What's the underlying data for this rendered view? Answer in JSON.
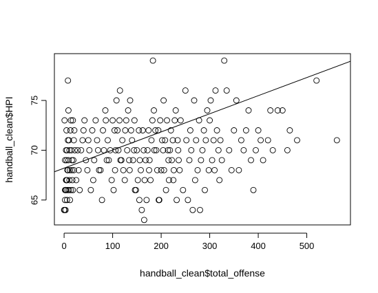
{
  "chart_data": {
    "type": "scatter",
    "xlabel": "handball_clean$total_offense",
    "ylabel": "handball_clean$HPI",
    "xlim": [
      -20,
      590
    ],
    "ylim": [
      62.5,
      79.7
    ],
    "x_ticks": [
      0,
      100,
      200,
      300,
      400,
      500
    ],
    "y_ticks": [
      65,
      70,
      75
    ],
    "x_tick_labels": [
      "0",
      "100",
      "200",
      "300",
      "400",
      "500"
    ],
    "y_tick_labels": [
      "65",
      "70",
      "75"
    ],
    "regression_line": {
      "intercept": 68.2,
      "slope": 0.0182
    },
    "grid": false,
    "points": [
      [
        1,
        64
      ],
      [
        2,
        65
      ],
      [
        3,
        66
      ],
      [
        4,
        66
      ],
      [
        5,
        67
      ],
      [
        6,
        67
      ],
      [
        7,
        68
      ],
      [
        8,
        68
      ],
      [
        2,
        69
      ],
      [
        4,
        70
      ],
      [
        6,
        70
      ],
      [
        8,
        71
      ],
      [
        1,
        73
      ],
      [
        5,
        72
      ],
      [
        9,
        74
      ],
      [
        3,
        64
      ],
      [
        6,
        65
      ],
      [
        10,
        66
      ],
      [
        11,
        67
      ],
      [
        12,
        68
      ],
      [
        4,
        67
      ],
      [
        7,
        66
      ],
      [
        9,
        69
      ],
      [
        10,
        71
      ],
      [
        13,
        72
      ],
      [
        14,
        73
      ],
      [
        15,
        70
      ],
      [
        16,
        68
      ],
      [
        17,
        67
      ],
      [
        18,
        66
      ],
      [
        19,
        69
      ],
      [
        20,
        71
      ],
      [
        21,
        72
      ],
      [
        8,
        77
      ],
      [
        0,
        64
      ],
      [
        2,
        66
      ],
      [
        5,
        69
      ],
      [
        7,
        68
      ],
      [
        11,
        70
      ],
      [
        12,
        65
      ],
      [
        14,
        66
      ],
      [
        16,
        69
      ],
      [
        18,
        73
      ],
      [
        20,
        68
      ],
      [
        22,
        70
      ],
      [
        30,
        68
      ],
      [
        35,
        70
      ],
      [
        40,
        72
      ],
      [
        45,
        69
      ],
      [
        50,
        71
      ],
      [
        55,
        66
      ],
      [
        60,
        67
      ],
      [
        65,
        73
      ],
      [
        70,
        70
      ],
      [
        75,
        68
      ],
      [
        80,
        72
      ],
      [
        85,
        74
      ],
      [
        88,
        69
      ],
      [
        90,
        71
      ],
      [
        95,
        70
      ],
      [
        100,
        73
      ],
      [
        102,
        66
      ],
      [
        105,
        68
      ],
      [
        108,
        75
      ],
      [
        110,
        72
      ],
      [
        112,
        70
      ],
      [
        115,
        76
      ],
      [
        118,
        69
      ],
      [
        120,
        71
      ],
      [
        125,
        67
      ],
      [
        128,
        73
      ],
      [
        130,
        70
      ],
      [
        132,
        74
      ],
      [
        135,
        68
      ],
      [
        138,
        72
      ],
      [
        140,
        71
      ],
      [
        142,
        69
      ],
      [
        145,
        73
      ],
      [
        148,
        66
      ],
      [
        150,
        70
      ],
      [
        152,
        67
      ],
      [
        155,
        65
      ],
      [
        158,
        68
      ],
      [
        160,
        64
      ],
      [
        162,
        72
      ],
      [
        165,
        63
      ],
      [
        168,
        69
      ],
      [
        170,
        65
      ],
      [
        172,
        70
      ],
      [
        175,
        68
      ],
      [
        178,
        67
      ],
      [
        180,
        71
      ],
      [
        183,
        79
      ],
      [
        185,
        74
      ],
      [
        188,
        72
      ],
      [
        190,
        70
      ],
      [
        195,
        65
      ],
      [
        198,
        73
      ],
      [
        200,
        68
      ],
      [
        205,
        75
      ],
      [
        208,
        71
      ],
      [
        210,
        66
      ],
      [
        215,
        69
      ],
      [
        218,
        70
      ],
      [
        220,
        72
      ],
      [
        225,
        67
      ],
      [
        230,
        74
      ],
      [
        235,
        70
      ],
      [
        238,
        68
      ],
      [
        240,
        73
      ],
      [
        245,
        66
      ],
      [
        250,
        76
      ],
      [
        252,
        71
      ],
      [
        255,
        65
      ],
      [
        258,
        69
      ],
      [
        260,
        72
      ],
      [
        262,
        70
      ],
      [
        265,
        64
      ],
      [
        268,
        75
      ],
      [
        270,
        67
      ],
      [
        272,
        71
      ],
      [
        275,
        68
      ],
      [
        278,
        73
      ],
      [
        280,
        64
      ],
      [
        282,
        69
      ],
      [
        285,
        70
      ],
      [
        288,
        72
      ],
      [
        290,
        66
      ],
      [
        292,
        71
      ],
      [
        295,
        74
      ],
      [
        298,
        68
      ],
      [
        300,
        73
      ],
      [
        302,
        75
      ],
      [
        305,
        69
      ],
      [
        308,
        71
      ],
      [
        310,
        68
      ],
      [
        312,
        76
      ],
      [
        315,
        72
      ],
      [
        318,
        70
      ],
      [
        320,
        67
      ],
      [
        322,
        71
      ],
      [
        325,
        69
      ],
      [
        330,
        79
      ],
      [
        335,
        76
      ],
      [
        340,
        70
      ],
      [
        345,
        68
      ],
      [
        350,
        72
      ],
      [
        355,
        75
      ],
      [
        360,
        68
      ],
      [
        365,
        71
      ],
      [
        370,
        70
      ],
      [
        375,
        72
      ],
      [
        380,
        74
      ],
      [
        385,
        69
      ],
      [
        390,
        66
      ],
      [
        395,
        70
      ],
      [
        400,
        72
      ],
      [
        405,
        71
      ],
      [
        410,
        69
      ],
      [
        420,
        71
      ],
      [
        425,
        74
      ],
      [
        430,
        70
      ],
      [
        440,
        74
      ],
      [
        450,
        74
      ],
      [
        460,
        70
      ],
      [
        465,
        72
      ],
      [
        480,
        71
      ],
      [
        520,
        77
      ],
      [
        562,
        71
      ],
      [
        25,
        67
      ],
      [
        28,
        70
      ],
      [
        32,
        66
      ],
      [
        38,
        71
      ],
      [
        42,
        73
      ],
      [
        48,
        68
      ],
      [
        52,
        70
      ],
      [
        58,
        72
      ],
      [
        62,
        69
      ],
      [
        68,
        71
      ],
      [
        72,
        68
      ],
      [
        78,
        65
      ],
      [
        82,
        70
      ],
      [
        86,
        73
      ],
      [
        92,
        69
      ],
      [
        98,
        67
      ],
      [
        104,
        72
      ],
      [
        106,
        70
      ],
      [
        114,
        73
      ],
      [
        116,
        69
      ],
      [
        122,
        68
      ],
      [
        126,
        72
      ],
      [
        134,
        69
      ],
      [
        136,
        75
      ],
      [
        144,
        70
      ],
      [
        146,
        66
      ],
      [
        154,
        72
      ],
      [
        156,
        69
      ],
      [
        164,
        70
      ],
      [
        166,
        67
      ],
      [
        174,
        72
      ],
      [
        176,
        69
      ],
      [
        182,
        73
      ],
      [
        186,
        70
      ],
      [
        192,
        68
      ],
      [
        194,
        72
      ],
      [
        196,
        65
      ],
      [
        202,
        71
      ],
      [
        204,
        70
      ],
      [
        206,
        68
      ],
      [
        212,
        73
      ],
      [
        214,
        70
      ],
      [
        216,
        67
      ],
      [
        222,
        69
      ],
      [
        224,
        71
      ],
      [
        226,
        68
      ],
      [
        228,
        73
      ],
      [
        232,
        65
      ],
      [
        234,
        71
      ],
      [
        236,
        69
      ]
    ]
  }
}
